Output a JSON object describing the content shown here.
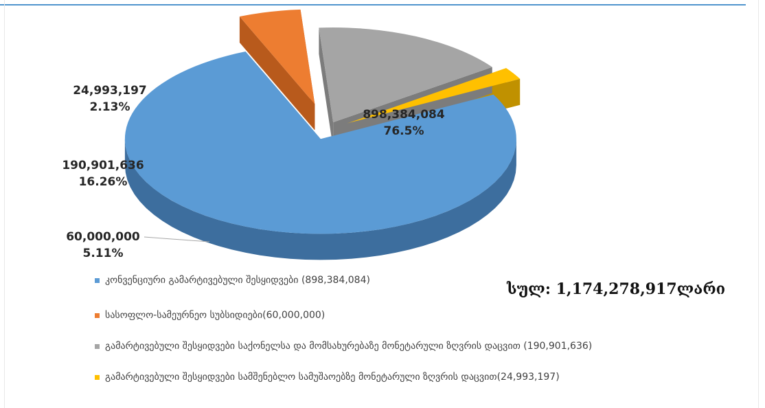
{
  "chart_data": {
    "type": "pie",
    "categories": [
      "კონვენციური გამარტივებული შესყიდვები (898,384,084)",
      "სასოფლო-სამეურნეო სუბსიდიები(60,000,000)",
      "გამარტივებული შესყიდვები საქონელსა და მომსახურებაზე მონეტარული ზღვრის დაცვით (190,901,636)",
      "გამარტივებული შესყიდვები სამშენებლო სამუშაოებზე მონეტარული ზღვრის დაცვით(24,993,197)"
    ],
    "values": [
      898384084,
      60000000,
      190901636,
      24993197
    ],
    "value_labels": [
      "898,384,084",
      "60,000,000",
      "190,901,636",
      "24,993,197"
    ],
    "percent_labels": [
      "76.5%",
      "5.11%",
      "16.26%",
      "2.13%"
    ],
    "colors": [
      "#5b9bd5",
      "#ed7d31",
      "#a5a5a5",
      "#ffc000"
    ],
    "side_colors": [
      "#3d6e9e",
      "#b85a1c",
      "#7c7c7c",
      "#c09100"
    ],
    "legend_position": "bottom",
    "exploded": true,
    "style": "3d"
  },
  "total_label": "სულ: 1,174,278,917ლარი"
}
